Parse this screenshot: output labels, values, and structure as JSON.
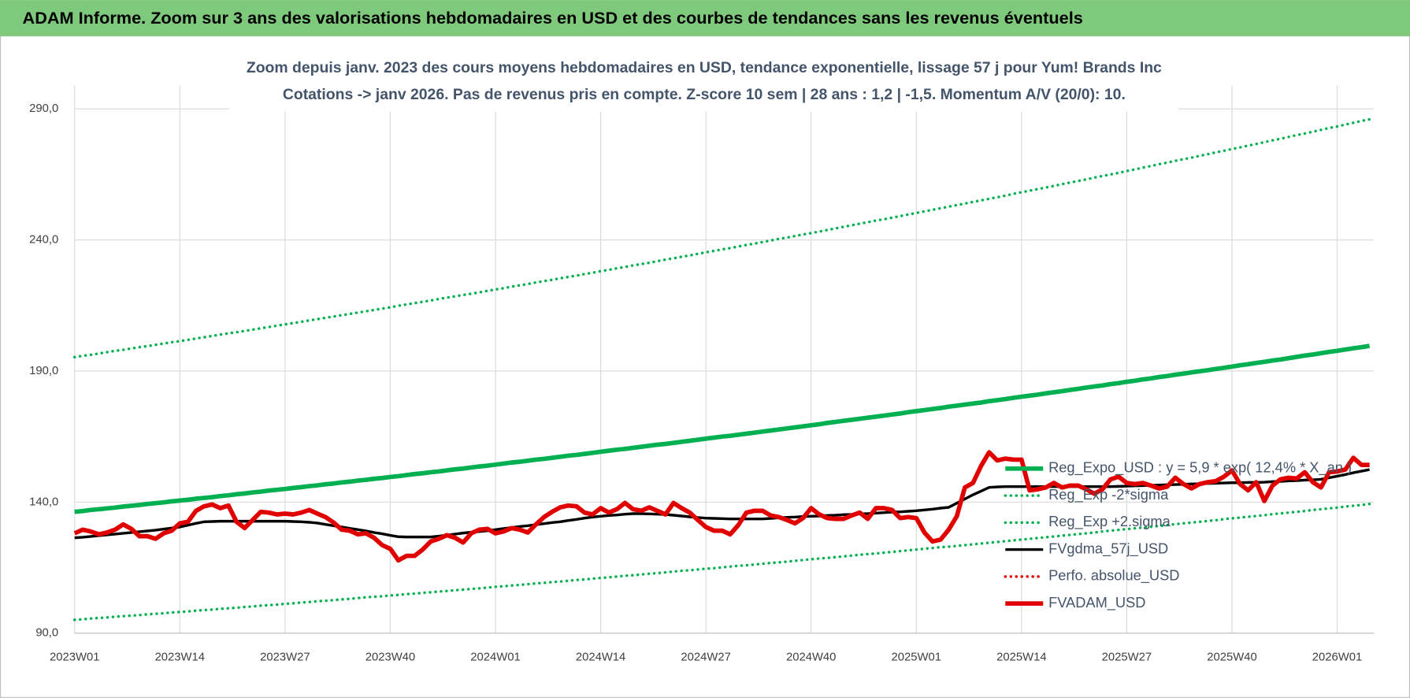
{
  "header": {
    "title": "ADAM Informe. Zoom sur 3 ans des valorisations hebdomadaires en USD et des courbes de tendances sans les revenus éventuels"
  },
  "chart_data": {
    "type": "line",
    "title": "Zoom depuis janv. 2023 des cours moyens hebdomadaires en USD, tendance exponentielle, lissage 57 j pour Yum! Brands Inc",
    "subtitle": "Cotations -> janv 2026. Pas de revenus pris en compte. Z-score 10 sem | 28 ans : 1,2 | -1,5. Momentum A/V (20/0): 10.",
    "categories": [
      "2023W01",
      null,
      null,
      null,
      null,
      null,
      null,
      null,
      null,
      null,
      null,
      null,
      null,
      "2023W14",
      null,
      null,
      null,
      null,
      null,
      null,
      null,
      null,
      null,
      null,
      null,
      null,
      "2023W27",
      null,
      null,
      null,
      null,
      null,
      null,
      null,
      null,
      null,
      null,
      null,
      null,
      "2023W40",
      null,
      null,
      null,
      null,
      null,
      null,
      null,
      null,
      null,
      null,
      null,
      null,
      "2024W01",
      null,
      null,
      null,
      null,
      null,
      null,
      null,
      null,
      null,
      null,
      null,
      null,
      "2024W14",
      null,
      null,
      null,
      null,
      null,
      null,
      null,
      null,
      null,
      null,
      null,
      null,
      "2024W27",
      null,
      null,
      null,
      null,
      null,
      null,
      null,
      null,
      null,
      null,
      null,
      null,
      "2024W40",
      null,
      null,
      null,
      null,
      null,
      null,
      null,
      null,
      null,
      null,
      null,
      null,
      "2025W01",
      null,
      null,
      null,
      null,
      null,
      null,
      null,
      null,
      null,
      null,
      null,
      null,
      "2025W14",
      null,
      null,
      null,
      null,
      null,
      null,
      null,
      null,
      null,
      null,
      null,
      null,
      "2025W27",
      null,
      null,
      null,
      null,
      null,
      null,
      null,
      null,
      null,
      null,
      null,
      null,
      "2025W40",
      null,
      null,
      null,
      null,
      null,
      null,
      null,
      null,
      null,
      null,
      null,
      null,
      "2026W01",
      null,
      null,
      null,
      null
    ],
    "ylim": [
      90,
      290
    ],
    "yticks": [
      {
        "value": 90,
        "label": "90,0"
      },
      {
        "value": 140,
        "label": "140,0"
      },
      {
        "value": 190,
        "label": "190,0"
      },
      {
        "value": 240,
        "label": "240,0"
      },
      {
        "value": 290,
        "label": "290,0"
      }
    ],
    "grid": true,
    "legend": "lower right",
    "series": [
      {
        "name": "Reg_Expo_USD : y = 5,9 * exp( 12,4% * X_an )",
        "color": "#00b050",
        "width": 5,
        "dash": "solid",
        "values": [
          136.3,
          136.6,
          137.0,
          137.3,
          137.6,
          137.9,
          138.3,
          138.6,
          138.9,
          139.3,
          139.6,
          139.9,
          140.3,
          140.6,
          140.9,
          141.3,
          141.6,
          141.9,
          142.3,
          142.6,
          143.0,
          143.3,
          143.7,
          144.0,
          144.4,
          144.7,
          145.0,
          145.4,
          145.7,
          146.1,
          146.4,
          146.8,
          147.1,
          147.5,
          147.8,
          148.2,
          148.5,
          148.9,
          149.2,
          149.6,
          149.9,
          150.3,
          150.7,
          151.0,
          151.4,
          151.7,
          152.1,
          152.5,
          152.8,
          153.2,
          153.6,
          153.9,
          154.3,
          154.7,
          155.1,
          155.4,
          155.8,
          156.2,
          156.5,
          156.9,
          157.3,
          157.7,
          158.0,
          158.4,
          158.8,
          159.2,
          159.6,
          160.0,
          160.3,
          160.7,
          161.1,
          161.5,
          161.9,
          162.2,
          162.6,
          163.0,
          163.4,
          163.8,
          164.2,
          164.6,
          165.0,
          165.3,
          165.7,
          166.1,
          166.5,
          166.9,
          167.3,
          167.7,
          168.1,
          168.5,
          168.9,
          169.3,
          169.7,
          170.2,
          170.6,
          171.0,
          171.4,
          171.8,
          172.2,
          172.6,
          173.0,
          173.4,
          173.8,
          174.3,
          174.7,
          175.1,
          175.5,
          175.9,
          176.4,
          176.8,
          177.2,
          177.6,
          178.0,
          178.5,
          178.9,
          179.3,
          179.8,
          180.2,
          180.6,
          181.0,
          181.5,
          181.9,
          182.3,
          182.8,
          183.2,
          183.7,
          184.1,
          184.5,
          185.0,
          185.4,
          185.9,
          186.3,
          186.8,
          187.2,
          187.7,
          188.1,
          188.6,
          189.0,
          189.5,
          189.9,
          190.3,
          190.8,
          191.2,
          191.7,
          192.2,
          192.6,
          193.1,
          193.5,
          194.0,
          194.4,
          194.9,
          195.4,
          195.9,
          196.3,
          196.8,
          197.3,
          197.7,
          198.2,
          198.7,
          199.1,
          199.6
        ]
      },
      {
        "name": "Reg_Exp -2*sigma",
        "color": "#00b050",
        "width": 3,
        "dash": "dotted",
        "values": [
          95.1,
          95.3,
          95.6,
          95.8,
          96.0,
          96.3,
          96.5,
          96.7,
          96.9,
          97.2,
          97.4,
          97.6,
          97.9,
          98.1,
          98.3,
          98.6,
          98.8,
          99.0,
          99.3,
          99.5,
          99.7,
          100.0,
          100.2,
          100.5,
          100.7,
          100.9,
          101.2,
          101.4,
          101.7,
          101.9,
          102.2,
          102.4,
          102.6,
          102.9,
          103.1,
          103.4,
          103.7,
          103.9,
          104.1,
          104.4,
          104.6,
          104.9,
          105.1,
          105.4,
          105.6,
          105.9,
          106.1,
          106.4,
          106.6,
          106.9,
          107.1,
          107.4,
          107.7,
          107.9,
          108.2,
          108.4,
          108.7,
          109.0,
          109.2,
          109.5,
          109.7,
          110.0,
          110.3,
          110.5,
          110.8,
          111.1,
          111.3,
          111.6,
          111.9,
          112.1,
          112.4,
          112.7,
          112.9,
          113.2,
          113.5,
          113.8,
          114.0,
          114.3,
          114.6,
          114.8,
          115.1,
          115.4,
          115.7,
          115.9,
          116.2,
          116.5,
          116.8,
          117.0,
          117.3,
          117.6,
          117.9,
          118.2,
          118.5,
          118.7,
          119.0,
          119.3,
          119.6,
          119.9,
          120.2,
          120.4,
          120.7,
          121.0,
          121.3,
          121.6,
          121.9,
          122.2,
          122.5,
          122.8,
          123.0,
          123.3,
          123.6,
          123.9,
          124.2,
          124.5,
          124.8,
          125.1,
          125.4,
          125.7,
          126.0,
          126.3,
          126.6,
          126.9,
          127.2,
          127.5,
          127.8,
          128.1,
          128.4,
          128.8,
          129.1,
          129.4,
          129.7,
          130.0,
          130.3,
          130.6,
          130.9,
          131.2,
          131.6,
          131.9,
          132.2,
          132.5,
          132.8,
          133.1,
          133.5,
          133.8,
          134.1,
          134.4,
          134.7,
          135.0,
          135.4,
          135.7,
          136.0,
          136.3,
          136.6,
          137.0,
          137.3,
          137.6,
          137.9,
          138.3,
          138.6,
          138.9,
          139.3
        ]
      },
      {
        "name": "Reg_Exp +2.sigma",
        "color": "#00b050",
        "width": 3,
        "dash": "dotted",
        "values": [
          195.3,
          195.8,
          196.2,
          196.7,
          197.2,
          197.7,
          198.1,
          198.6,
          199.1,
          199.5,
          200.0,
          200.5,
          201.0,
          201.4,
          201.9,
          202.4,
          202.9,
          203.4,
          203.9,
          204.4,
          204.8,
          205.3,
          205.8,
          206.3,
          206.8,
          207.3,
          207.8,
          208.3,
          208.8,
          209.3,
          209.8,
          210.3,
          210.8,
          211.3,
          211.8,
          212.3,
          212.8,
          213.3,
          213.8,
          214.3,
          214.9,
          215.4,
          215.9,
          216.4,
          216.9,
          217.5,
          218.0,
          218.5,
          219.0,
          219.5,
          220.0,
          220.6,
          221.1,
          221.6,
          222.2,
          222.7,
          223.2,
          223.8,
          224.3,
          224.8,
          225.4,
          225.9,
          226.4,
          227.0,
          227.5,
          228.1,
          228.6,
          229.2,
          229.7,
          230.3,
          230.8,
          231.3,
          231.9,
          232.5,
          233.0,
          233.6,
          234.1,
          234.7,
          235.3,
          235.8,
          236.4,
          236.9,
          237.5,
          238.1,
          238.6,
          239.2,
          239.8,
          240.4,
          240.9,
          241.5,
          242.1,
          242.6,
          243.2,
          243.8,
          244.4,
          245.0,
          245.6,
          246.2,
          246.8,
          247.4,
          247.9,
          248.5,
          249.1,
          249.7,
          250.3,
          250.9,
          251.5,
          252.1,
          252.7,
          253.3,
          253.9,
          254.5,
          255.1,
          255.7,
          256.3,
          256.9,
          257.6,
          258.2,
          258.8,
          259.4,
          260.0,
          260.6,
          261.3,
          261.9,
          262.5,
          263.1,
          263.8,
          264.4,
          265.0,
          265.6,
          266.3,
          266.9,
          267.6,
          268.2,
          268.9,
          269.5,
          270.2,
          270.8,
          271.4,
          272.1,
          272.7,
          273.4,
          274.0,
          274.7,
          275.3,
          276.0,
          276.6,
          277.3,
          278.0,
          278.6,
          279.3,
          280.0,
          280.6,
          281.3,
          282.0,
          282.7,
          283.3,
          284.0,
          284.7,
          285.4,
          286.0
        ]
      },
      {
        "name": "FVgdma_57j_USD",
        "color": "#000000",
        "width": 3,
        "dash": "solid",
        "values": [
          126.4,
          126.6,
          126.9,
          127.2,
          127.5,
          127.8,
          128.1,
          128.4,
          128.7,
          129.0,
          129.3,
          129.7,
          130.1,
          130.5,
          131.2,
          131.9,
          132.5,
          132.6,
          132.7,
          132.7,
          132.7,
          132.7,
          132.7,
          132.7,
          132.7,
          132.7,
          132.7,
          132.6,
          132.5,
          132.3,
          132.0,
          131.5,
          131.0,
          130.5,
          130.0,
          129.5,
          129.0,
          128.4,
          127.9,
          127.3,
          126.8,
          126.7,
          126.7,
          126.7,
          126.7,
          127.0,
          127.4,
          127.8,
          128.2,
          128.5,
          128.8,
          129.1,
          129.5,
          129.9,
          130.3,
          130.7,
          131.0,
          131.4,
          131.8,
          132.2,
          132.5,
          133.0,
          133.4,
          133.9,
          134.3,
          134.6,
          134.9,
          135.1,
          135.4,
          135.6,
          135.6,
          135.5,
          135.4,
          135.3,
          135.0,
          134.7,
          134.4,
          134.1,
          133.9,
          133.8,
          133.7,
          133.6,
          133.6,
          133.6,
          133.6,
          133.6,
          133.8,
          134.0,
          134.2,
          134.3,
          134.5,
          134.6,
          134.7,
          134.9,
          135.0,
          135.2,
          135.3,
          135.5,
          135.6,
          135.8,
          136.0,
          136.2,
          136.3,
          136.5,
          136.7,
          137.0,
          137.3,
          137.7,
          138.0,
          139.6,
          141.2,
          142.8,
          144.2,
          145.6,
          145.8,
          145.9,
          145.9,
          145.9,
          145.9,
          145.9,
          145.9,
          145.9,
          145.9,
          145.9,
          145.9,
          145.9,
          145.9,
          145.9,
          145.9,
          146.0,
          146.1,
          146.2,
          146.3,
          146.4,
          146.5,
          146.6,
          146.7,
          146.8,
          146.9,
          147.0,
          147.1,
          147.2,
          147.3,
          147.4,
          147.4,
          147.5,
          147.5,
          147.6,
          147.8,
          147.9,
          148.1,
          148.2,
          148.4,
          148.5,
          148.7,
          149.3,
          149.9,
          150.5,
          151.2,
          151.8,
          152.4
        ]
      },
      {
        "name": "Perfo. absolue_USD",
        "color": "#e00000",
        "width": 3,
        "dash": "dotted"
      },
      {
        "name": "FVADAM_USD",
        "color": "#e00000",
        "width": 5,
        "dash": "solid",
        "values": [
          128.1,
          129.5,
          128.8,
          127.7,
          128.4,
          129.5,
          131.5,
          129.8,
          127.0,
          127.0,
          126.0,
          128.1,
          129.1,
          131.9,
          132.5,
          136.7,
          138.4,
          139.1,
          137.7,
          138.7,
          132.5,
          130.1,
          133.2,
          136.3,
          136.0,
          135.3,
          135.6,
          135.3,
          136.0,
          137.0,
          135.6,
          134.3,
          132.2,
          129.5,
          129.1,
          127.7,
          128.1,
          126.4,
          123.6,
          122.2,
          117.8,
          119.5,
          119.5,
          121.9,
          125.0,
          126.0,
          127.4,
          126.4,
          124.6,
          128.1,
          129.5,
          129.8,
          128.1,
          128.8,
          130.1,
          129.5,
          128.4,
          131.5,
          134.3,
          136.3,
          138.0,
          138.7,
          138.4,
          136.0,
          135.3,
          137.7,
          136.0,
          137.3,
          139.7,
          137.3,
          136.7,
          138.0,
          136.7,
          135.3,
          139.7,
          137.7,
          136.0,
          133.2,
          130.5,
          129.1,
          129.1,
          127.7,
          131.2,
          136.0,
          136.7,
          136.7,
          134.9,
          134.3,
          133.2,
          131.9,
          133.9,
          137.7,
          135.3,
          133.9,
          133.6,
          133.6,
          134.9,
          136.0,
          133.6,
          137.7,
          137.7,
          137.0,
          133.9,
          134.3,
          133.9,
          128.4,
          125.0,
          125.7,
          129.5,
          134.6,
          145.6,
          147.3,
          153.8,
          159.0,
          155.9,
          156.6,
          156.2,
          156.2,
          144.5,
          144.9,
          145.6,
          147.3,
          145.6,
          146.3,
          146.3,
          144.9,
          143.2,
          144.9,
          148.7,
          149.7,
          147.3,
          146.9,
          147.3,
          146.3,
          145.2,
          145.9,
          149.3,
          146.9,
          145.2,
          146.9,
          147.6,
          148.0,
          149.7,
          152.1,
          146.9,
          144.5,
          147.6,
          140.4,
          146.3,
          148.7,
          149.3,
          149.0,
          151.4,
          147.6,
          145.6,
          151.4,
          151.7,
          152.4,
          156.9,
          154.2,
          154.2
        ]
      }
    ]
  }
}
